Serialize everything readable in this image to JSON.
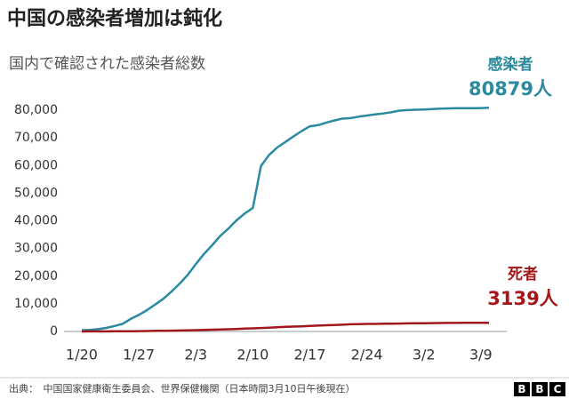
{
  "chart_data": {
    "type": "line",
    "title": "中国の感染者増加は鈍化",
    "subtitle": "国内で確認された感染者総数",
    "x": [
      "1/20",
      "1/21",
      "1/22",
      "1/23",
      "1/24",
      "1/25",
      "1/26",
      "1/27",
      "1/28",
      "1/29",
      "1/30",
      "1/31",
      "2/1",
      "2/2",
      "2/3",
      "2/4",
      "2/5",
      "2/6",
      "2/7",
      "2/8",
      "2/9",
      "2/10",
      "2/11",
      "2/12",
      "2/13",
      "2/14",
      "2/15",
      "2/16",
      "2/17",
      "2/18",
      "2/19",
      "2/20",
      "2/21",
      "2/22",
      "2/23",
      "2/24",
      "2/25",
      "2/26",
      "2/27",
      "2/28",
      "2/29",
      "3/1",
      "3/2",
      "3/3",
      "3/4",
      "3/5",
      "3/6",
      "3/7",
      "3/8",
      "3/9",
      "3/10"
    ],
    "series": [
      {
        "name": "感染者",
        "color": "#2a8aa0",
        "values": [
          440,
          571,
          830,
          1287,
          1975,
          2744,
          4515,
          5974,
          7711,
          9692,
          11791,
          14380,
          17205,
          20438,
          24324,
          28018,
          31161,
          34546,
          37198,
          40171,
          42638,
          44653,
          59804,
          63851,
          66492,
          68500,
          70548,
          72436,
          74185,
          74576,
          75465,
          76288,
          76936,
          77150,
          77658,
          78064,
          78497,
          78824,
          79251,
          79824,
          80026,
          80151,
          80270,
          80409,
          80552,
          80651,
          80695,
          80735,
          80754,
          80778,
          80879
        ]
      },
      {
        "name": "死者",
        "color": "#a3161a",
        "values": [
          9,
          17,
          25,
          41,
          56,
          80,
          106,
          132,
          170,
          213,
          259,
          304,
          361,
          425,
          490,
          562,
          636,
          722,
          811,
          908,
          1016,
          1113,
          1259,
          1380,
          1523,
          1665,
          1770,
          1868,
          2004,
          2118,
          2236,
          2345,
          2442,
          2592,
          2663,
          2715,
          2744,
          2788,
          2835,
          2870,
          2912,
          2943,
          2981,
          3012,
          3042,
          3070,
          3097,
          3119,
          3136,
          3138,
          3139
        ]
      }
    ],
    "annotations": [
      {
        "series": 0,
        "lines": [
          "感染者",
          "80879人"
        ]
      },
      {
        "series": 1,
        "lines": [
          "死者",
          "3139人"
        ]
      }
    ],
    "ylim": [
      0,
      80000
    ],
    "yticks": [
      0,
      {
        "value": 10000,
        "label": "10,000"
      },
      {
        "value": 20000,
        "label": "20,000"
      },
      {
        "value": 30000,
        "label": "30,000"
      },
      {
        "value": 40000,
        "label": "40,000"
      },
      {
        "value": 50000,
        "label": "50,000"
      },
      {
        "value": 60000,
        "label": "60,000"
      },
      {
        "value": 70000,
        "label": "70,000"
      },
      {
        "value": 80000,
        "label": "80,000"
      }
    ],
    "xticks": [
      "1/20",
      "1/27",
      "2/3",
      "2/10",
      "2/17",
      "2/24",
      "3/2",
      "3/9"
    ],
    "grid": false
  },
  "footer": {
    "source": "出典：　中国国家健康衛生委員会、世界保健機関（日本時間3月10日午後現在）",
    "logo": [
      "B",
      "B",
      "C"
    ]
  }
}
